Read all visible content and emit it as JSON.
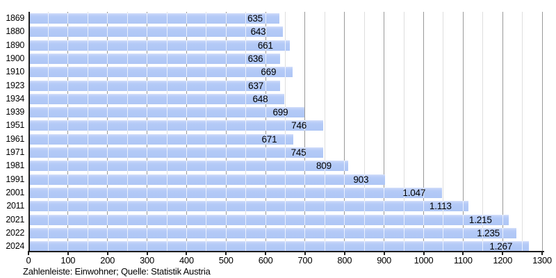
{
  "chart_data": {
    "type": "bar",
    "orientation": "horizontal",
    "title": "",
    "xlabel": "",
    "ylabel": "",
    "categories": [
      "1869",
      "1880",
      "1890",
      "1900",
      "1910",
      "1923",
      "1934",
      "1939",
      "1951",
      "1961",
      "1971",
      "1981",
      "1991",
      "2001",
      "2011",
      "2021",
      "2022",
      "2024"
    ],
    "values": [
      635,
      643,
      661,
      636,
      669,
      637,
      648,
      699,
      746,
      671,
      745,
      809,
      903,
      1047,
      1113,
      1215,
      1235,
      1267
    ],
    "value_labels": [
      "635",
      "643",
      "661",
      "636",
      "669",
      "637",
      "648",
      "699",
      "746",
      "671",
      "745",
      "809",
      "903",
      "1.047",
      "1.113",
      "1.215",
      "1.235",
      "1.267"
    ],
    "xlim": [
      0,
      1300
    ],
    "x_major_tick_labels": [
      "0",
      "100",
      "200",
      "300",
      "400",
      "500",
      "600",
      "700",
      "800",
      "900",
      "1000",
      "1100",
      "1200",
      "1300"
    ],
    "x_major_step": 100,
    "x_minor_step": 50,
    "grid": "vertical-major-and-minor",
    "legend": "none",
    "caption": "Zahlenleiste: Einwohner; Quelle: Statistik Austria",
    "colors": {
      "bar": "#b4caf7",
      "bar_top_edge": "#d8e2fb",
      "grid_major": "#999999",
      "grid_minor": "#dedede",
      "axis": "#1c1c1c",
      "text": "#000000",
      "background": "#ffffff"
    }
  }
}
